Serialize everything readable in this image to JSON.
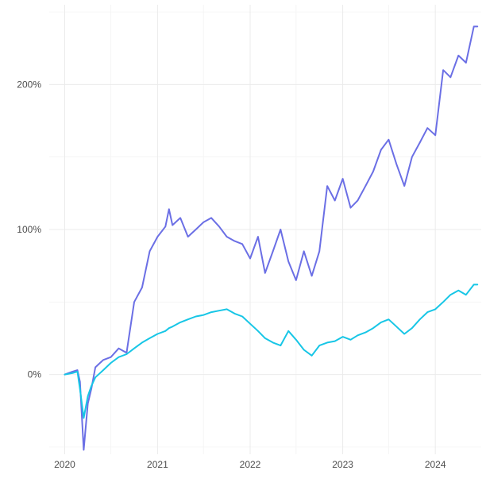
{
  "chart_data": {
    "type": "line",
    "title": "",
    "xlabel": "",
    "ylabel": "",
    "x_ticks": [
      "2020",
      "2021",
      "2022",
      "2023",
      "2024"
    ],
    "y_ticks": [
      "0%",
      "100%",
      "200%"
    ],
    "xlim": [
      "2019-11-01",
      "2024-06-30"
    ],
    "ylim": [
      -0.55,
      2.55
    ],
    "grid": true,
    "legend": "none",
    "x": [
      "2020-01-01",
      "2020-02-01",
      "2020-02-20",
      "2020-03-01",
      "2020-03-16",
      "2020-04-01",
      "2020-04-15",
      "2020-05-01",
      "2020-06-01",
      "2020-07-01",
      "2020-08-01",
      "2020-09-01",
      "2020-10-01",
      "2020-11-01",
      "2020-12-01",
      "2021-01-01",
      "2021-02-01",
      "2021-02-15",
      "2021-03-01",
      "2021-04-01",
      "2021-05-01",
      "2021-06-01",
      "2021-07-01",
      "2021-08-01",
      "2021-09-01",
      "2021-10-01",
      "2021-11-01",
      "2021-12-01",
      "2022-01-01",
      "2022-02-01",
      "2022-03-01",
      "2022-04-01",
      "2022-05-01",
      "2022-06-01",
      "2022-07-01",
      "2022-08-01",
      "2022-09-01",
      "2022-10-01",
      "2022-11-01",
      "2022-12-01",
      "2023-01-01",
      "2023-02-01",
      "2023-03-01",
      "2023-04-01",
      "2023-05-01",
      "2023-06-01",
      "2023-07-01",
      "2023-08-01",
      "2023-09-01",
      "2023-10-01",
      "2023-11-01",
      "2023-12-01",
      "2024-01-01",
      "2024-02-01",
      "2024-03-01",
      "2024-04-01",
      "2024-05-01",
      "2024-06-01",
      "2024-06-15"
    ],
    "series": [
      {
        "color": "#6b6fe5",
        "values": [
          0.0,
          0.02,
          0.03,
          -0.05,
          -0.52,
          -0.2,
          -0.1,
          0.05,
          0.1,
          0.12,
          0.18,
          0.15,
          0.5,
          0.6,
          0.85,
          0.95,
          1.02,
          1.14,
          1.03,
          1.08,
          0.95,
          1.0,
          1.05,
          1.08,
          1.02,
          0.95,
          0.92,
          0.9,
          0.8,
          0.95,
          0.7,
          0.85,
          1.0,
          0.78,
          0.65,
          0.85,
          0.68,
          0.85,
          1.3,
          1.2,
          1.35,
          1.15,
          1.2,
          1.3,
          1.4,
          1.55,
          1.62,
          1.45,
          1.3,
          1.5,
          1.6,
          1.7,
          1.65,
          2.1,
          2.05,
          2.2,
          2.15,
          2.4,
          2.4
        ]
      },
      {
        "color": "#17c6e6",
        "values": [
          0.0,
          0.01,
          0.02,
          -0.1,
          -0.3,
          -0.15,
          -0.08,
          -0.02,
          0.03,
          0.08,
          0.12,
          0.14,
          0.18,
          0.22,
          0.25,
          0.28,
          0.3,
          0.32,
          0.33,
          0.36,
          0.38,
          0.4,
          0.41,
          0.43,
          0.44,
          0.45,
          0.42,
          0.4,
          0.35,
          0.3,
          0.25,
          0.22,
          0.2,
          0.3,
          0.24,
          0.17,
          0.13,
          0.2,
          0.22,
          0.23,
          0.26,
          0.24,
          0.27,
          0.29,
          0.32,
          0.36,
          0.38,
          0.33,
          0.28,
          0.32,
          0.38,
          0.43,
          0.45,
          0.5,
          0.55,
          0.58,
          0.55,
          0.62,
          0.62
        ]
      }
    ]
  }
}
